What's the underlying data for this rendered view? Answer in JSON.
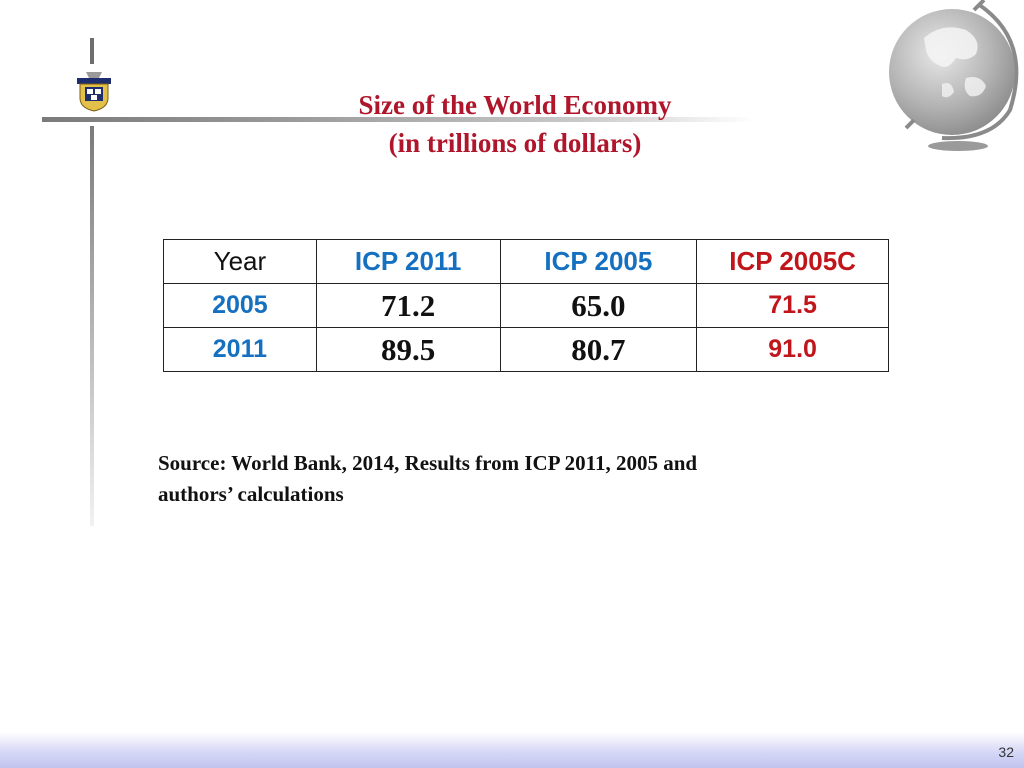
{
  "title": {
    "line1": "Size of the World Economy",
    "line2": "(in trillions of dollars)"
  },
  "table": {
    "headers": [
      "Year",
      "ICP 2011",
      "ICP 2005",
      "ICP 2005C"
    ],
    "rows": [
      [
        "2005",
        "71.2",
        "65.0",
        "71.5"
      ],
      [
        "2011",
        "89.5",
        "80.7",
        "91.0"
      ]
    ]
  },
  "source": {
    "line1": "Source: World Bank, 2014, Results from ICP 2011, 2005 and",
    "line2": "authors’ calculations"
  },
  "footer": {
    "page_number": "32"
  },
  "colors": {
    "title": "#b0162b",
    "accent_blue": "#1570c0",
    "accent_red": "#c0151b",
    "footer_band": "#c2c4f0"
  },
  "icons": [
    "university-crest-icon",
    "globe-icon"
  ]
}
